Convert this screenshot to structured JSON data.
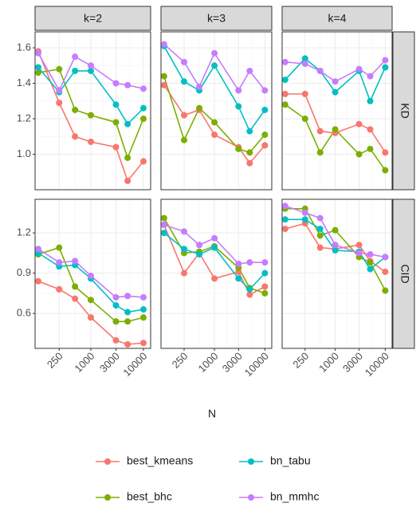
{
  "chart_data": {
    "type": "line",
    "x_label": "N",
    "xlog": true,
    "grid": true,
    "x": [
      100,
      250,
      500,
      1000,
      3000,
      5000,
      10000
    ],
    "xlim": [
      87,
      13700
    ],
    "xticks": [
      250,
      1000,
      3000,
      10000
    ],
    "columns": [
      "k=2",
      "k=3",
      "k=4"
    ],
    "rows": [
      {
        "label": "KD",
        "ylim": [
          0.8,
          1.69
        ],
        "yticks": [
          {
            "value": 1,
            "label": "1.0"
          },
          1.2,
          1.4,
          1.6
        ]
      },
      {
        "label": "CID",
        "ylim": [
          0.34,
          1.45
        ],
        "yticks": [
          0.6,
          0.9,
          1.2
        ]
      }
    ],
    "series": [
      {
        "name": "best_kmeans",
        "color": "#F8766D"
      },
      {
        "name": "best_bhc",
        "color": "#7CAE00"
      },
      {
        "name": "bn_tabu",
        "color": "#00BFC4"
      },
      {
        "name": "bn_mmhc",
        "color": "#C77CFF"
      }
    ],
    "panels": [
      [
        [
          [
            1.58,
            1.29,
            1.1,
            1.07,
            1.04,
            0.85,
            0.96
          ],
          [
            1.46,
            1.48,
            1.25,
            1.22,
            1.18,
            0.98,
            1.2
          ],
          [
            1.49,
            1.35,
            1.47,
            1.47,
            1.28,
            1.17,
            1.26
          ],
          [
            1.57,
            1.36,
            1.55,
            1.5,
            1.4,
            1.39,
            1.37
          ]
        ],
        [
          [
            1.39,
            1.22,
            1.25,
            1.11,
            1.04,
            0.95,
            1.05
          ],
          [
            1.44,
            1.08,
            1.26,
            1.18,
            1.03,
            1.01,
            1.11
          ],
          [
            1.61,
            1.41,
            1.36,
            1.5,
            1.27,
            1.13,
            1.25
          ],
          [
            1.62,
            1.52,
            1.38,
            1.57,
            1.36,
            1.47,
            1.36
          ]
        ],
        [
          [
            1.34,
            1.34,
            1.13,
            1.12,
            1.17,
            1.14,
            1.01
          ],
          [
            1.28,
            1.2,
            1.01,
            1.14,
            1.0,
            1.03,
            0.91
          ],
          [
            1.42,
            1.54,
            1.47,
            1.35,
            1.47,
            1.3,
            1.49
          ],
          [
            1.52,
            1.51,
            1.47,
            1.41,
            1.48,
            1.44,
            1.53
          ]
        ]
      ],
      [
        [
          [
            0.84,
            0.78,
            0.71,
            0.57,
            0.4,
            0.37,
            0.38
          ],
          [
            1.04,
            1.09,
            0.8,
            0.7,
            0.54,
            0.54,
            0.57
          ],
          [
            1.05,
            0.95,
            0.96,
            0.86,
            0.66,
            0.61,
            0.63
          ],
          [
            1.08,
            0.98,
            0.99,
            0.88,
            0.72,
            0.73,
            0.72
          ]
        ],
        [
          [
            1.26,
            0.9,
            1.05,
            0.86,
            0.91,
            0.74,
            0.8
          ],
          [
            1.31,
            1.05,
            1.06,
            1.1,
            0.94,
            0.79,
            0.75
          ],
          [
            1.2,
            1.08,
            1.04,
            1.09,
            0.86,
            0.78,
            0.9
          ],
          [
            1.26,
            1.21,
            1.11,
            1.16,
            0.97,
            0.98,
            0.98
          ]
        ],
        [
          [
            1.23,
            1.27,
            1.09,
            1.08,
            1.11,
            0.99,
            0.91
          ],
          [
            1.38,
            1.38,
            1.18,
            1.22,
            1.02,
            0.98,
            0.77
          ],
          [
            1.3,
            1.3,
            1.23,
            1.07,
            1.06,
            0.93,
            1.02
          ],
          [
            1.4,
            1.35,
            1.31,
            1.11,
            1.05,
            1.04,
            1.02
          ]
        ]
      ]
    ]
  }
}
